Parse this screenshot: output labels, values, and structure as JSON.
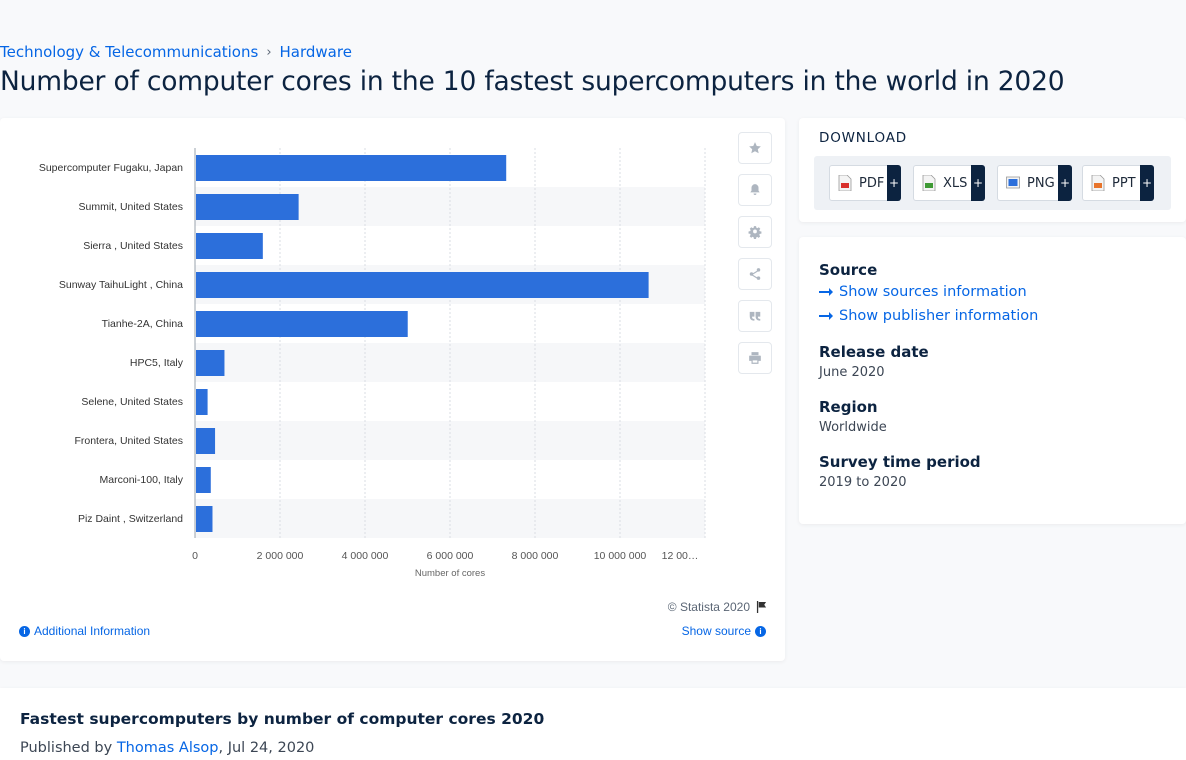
{
  "breadcrumb": {
    "category": "Technology & Telecommunications",
    "separator": "›",
    "subcategory": "Hardware"
  },
  "page_title": "Number of computer cores in the 10 fastest supercomputers in the world in 2020",
  "chart_data": {
    "type": "bar",
    "orientation": "horizontal",
    "categories": [
      "Supercomputer Fugaku, Japan",
      "Summit, United States",
      "Sierra , United States",
      "Sunway TaihuLight , China",
      "Tianhe-2A, China",
      "HPC5, Italy",
      "Selene, United States",
      "Frontera, United States",
      "Marconi-100, Italy",
      "Piz Daint , Switzerland"
    ],
    "values": [
      7299072,
      2414592,
      1572480,
      10649600,
      4981760,
      669760,
      272800,
      448448,
      347776,
      387872
    ],
    "xlabel": "Number of cores",
    "xlim": [
      0,
      12000000
    ],
    "ticks": [
      0,
      2000000,
      4000000,
      6000000,
      8000000,
      10000000,
      12000000
    ],
    "tick_labels": [
      "0",
      "2 000 000",
      "4 000 000",
      "6 000 000",
      "8 000 000",
      "10 000 000",
      "12 00…"
    ],
    "grid": true,
    "bar_color": "#2c6fdb"
  },
  "copyright": "© Statista 2020",
  "additional_info": "Additional Information",
  "show_source": "Show source",
  "tools": [
    {
      "icon": "star-icon",
      "label": "favorite"
    },
    {
      "icon": "bell-icon",
      "label": "notify"
    },
    {
      "icon": "gear-icon",
      "label": "settings"
    },
    {
      "icon": "share-icon",
      "label": "share"
    },
    {
      "icon": "quote-icon",
      "label": "cite"
    },
    {
      "icon": "print-icon",
      "label": "print"
    }
  ],
  "download": {
    "title": "DOWNLOAD",
    "buttons": [
      {
        "label": "PDF",
        "icon": "pdf-file-icon",
        "color": "#d9302c"
      },
      {
        "label": "XLS",
        "icon": "xls-file-icon",
        "color": "#3f9a35"
      },
      {
        "label": "PNG",
        "icon": "png-file-icon",
        "color": "#2c6fdb"
      },
      {
        "label": "PPT",
        "icon": "ppt-file-icon",
        "color": "#e8742b"
      }
    ],
    "plus": "+"
  },
  "meta": {
    "source_label": "Source",
    "show_sources": "Show sources information",
    "show_publisher": "Show publisher information",
    "release_label": "Release date",
    "release_value": "June 2020",
    "region_label": "Region",
    "region_value": "Worldwide",
    "survey_label": "Survey time period",
    "survey_value": "2019 to 2020"
  },
  "bottom": {
    "title": "Fastest supercomputers by number of computer cores 2020",
    "published_prefix": "Published by",
    "author": "Thomas Alsop",
    "date": ", Jul 24, 2020"
  }
}
